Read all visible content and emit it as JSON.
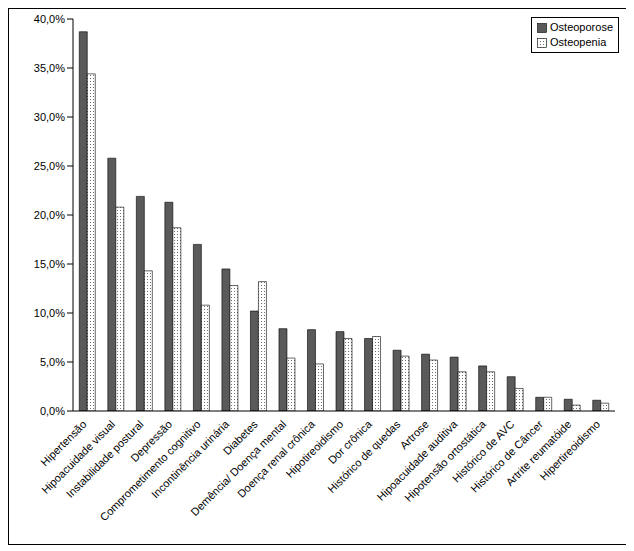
{
  "chart_data": {
    "type": "bar",
    "categories": [
      "Hipertensão",
      "Hipoacuidade visual",
      "Instabilidade postural",
      "Depressão",
      "Comprometimento cognitivo",
      "Incontinência urinária",
      "Diabetes",
      "Demência/ Doença mental",
      "Doença renal crônica",
      "Hipotireoidismo",
      "Dor crônica",
      "Histórico de quedas",
      "Artrose",
      "Hipoacuidade auditiva",
      "Hipotensão ortostática",
      "Histórico de AVC",
      "Histórico de Câncer",
      "Artrite reumatóide",
      "Hipertireoidismo"
    ],
    "series": [
      {
        "name": "Osteoporose",
        "color": "#5a5a5a",
        "values": [
          38.7,
          25.8,
          21.9,
          21.3,
          17.0,
          14.5,
          10.2,
          8.4,
          8.3,
          8.1,
          7.4,
          6.2,
          5.8,
          5.5,
          4.6,
          3.5,
          1.4,
          1.2,
          1.1
        ]
      },
      {
        "name": "Osteopenia",
        "color": "#707070",
        "values": [
          34.4,
          20.8,
          14.3,
          18.7,
          10.8,
          12.8,
          13.2,
          5.4,
          4.8,
          7.4,
          7.6,
          5.6,
          5.2,
          4.0,
          4.0,
          2.3,
          1.4,
          0.6,
          0.8
        ]
      }
    ],
    "ylim": [
      0,
      40
    ],
    "yticks": [
      {
        "value": 0,
        "label": "0,0%"
      },
      {
        "value": 5,
        "label": "5,0%"
      },
      {
        "value": 10,
        "label": "10,0%"
      },
      {
        "value": 15,
        "label": "15,0%"
      },
      {
        "value": 20,
        "label": "20,0%"
      },
      {
        "value": 25,
        "label": "25,0%"
      },
      {
        "value": 30,
        "label": "30,0%"
      },
      {
        "value": 35,
        "label": "35,0%"
      },
      {
        "value": 40,
        "label": "40,0%"
      }
    ],
    "legend": "top-right",
    "grid": false
  }
}
